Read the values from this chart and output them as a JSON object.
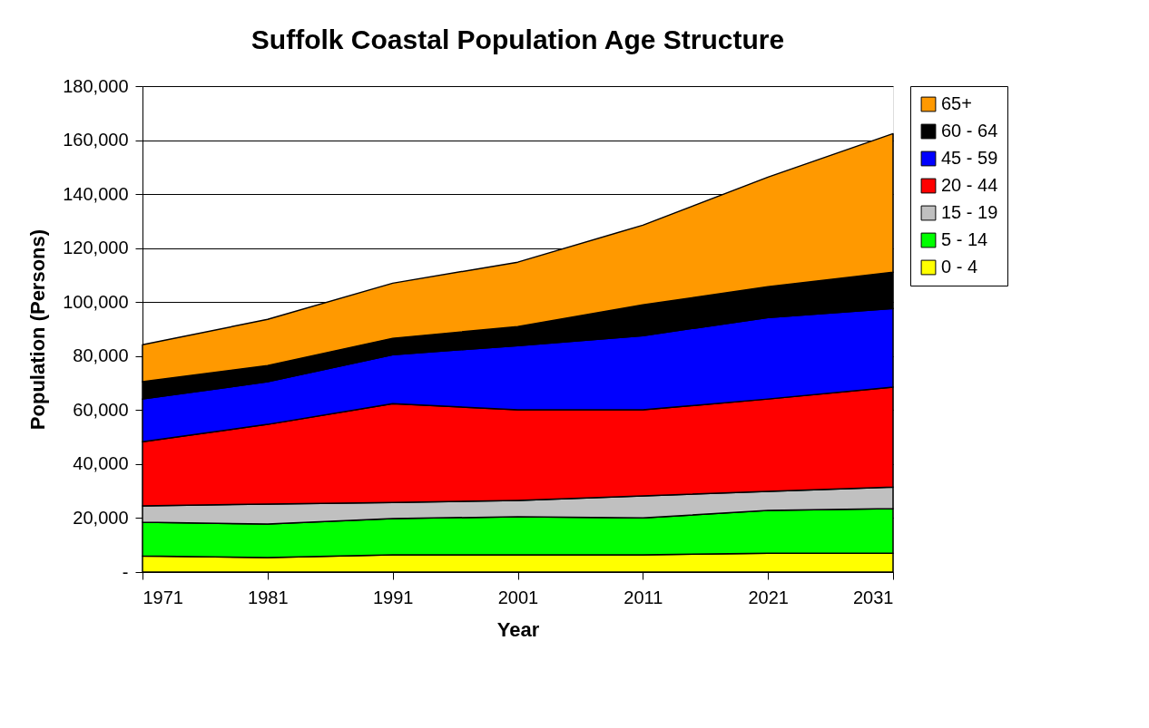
{
  "chart_data": {
    "type": "area",
    "stacked": true,
    "title": "Suffolk Coastal Population Age Structure",
    "xlabel": "Year",
    "ylabel": "Population (Persons)",
    "categories": [
      "1971",
      "1981",
      "1991",
      "2001",
      "2011",
      "2021",
      "2031"
    ],
    "series": [
      {
        "name": "0 - 4",
        "color": "#ffff00",
        "values": [
          6000,
          5400,
          6400,
          6400,
          6400,
          7000,
          7000
        ]
      },
      {
        "name": "5 - 14",
        "color": "#00ff00",
        "values": [
          12500,
          12400,
          13400,
          14100,
          13700,
          15800,
          16500
        ]
      },
      {
        "name": "15 - 19",
        "color": "#c0c0c0",
        "values": [
          6000,
          7400,
          6000,
          6000,
          8100,
          7100,
          8000
        ]
      },
      {
        "name": "20 - 44",
        "color": "#ff0000",
        "values": [
          23800,
          29500,
          36600,
          33600,
          31900,
          34200,
          37000
        ]
      },
      {
        "name": "45 - 59",
        "color": "#0000ff",
        "values": [
          15800,
          15800,
          18100,
          23800,
          27500,
          30200,
          29100
        ]
      },
      {
        "name": "60 - 64",
        "color": "#000000",
        "values": [
          6400,
          6000,
          6100,
          7000,
          11400,
          11400,
          13500
        ]
      },
      {
        "name": "65+",
        "color": "#ff9900",
        "values": [
          13700,
          17100,
          20400,
          23900,
          29500,
          40600,
          51300
        ]
      }
    ],
    "ylim": [
      0,
      180000
    ],
    "yticks": [
      {
        "value": 0,
        "label": "-"
      },
      {
        "value": 20000,
        "label": "20,000"
      },
      {
        "value": 40000,
        "label": "40,000"
      },
      {
        "value": 60000,
        "label": "60,000"
      },
      {
        "value": 80000,
        "label": "80,000"
      },
      {
        "value": 100000,
        "label": "100,000"
      },
      {
        "value": 120000,
        "label": "120,000"
      },
      {
        "value": 140000,
        "label": "140,000"
      },
      {
        "value": 160000,
        "label": "160,000"
      },
      {
        "value": 180000,
        "label": "180,000"
      }
    ],
    "grid": "y",
    "legend": "right"
  }
}
